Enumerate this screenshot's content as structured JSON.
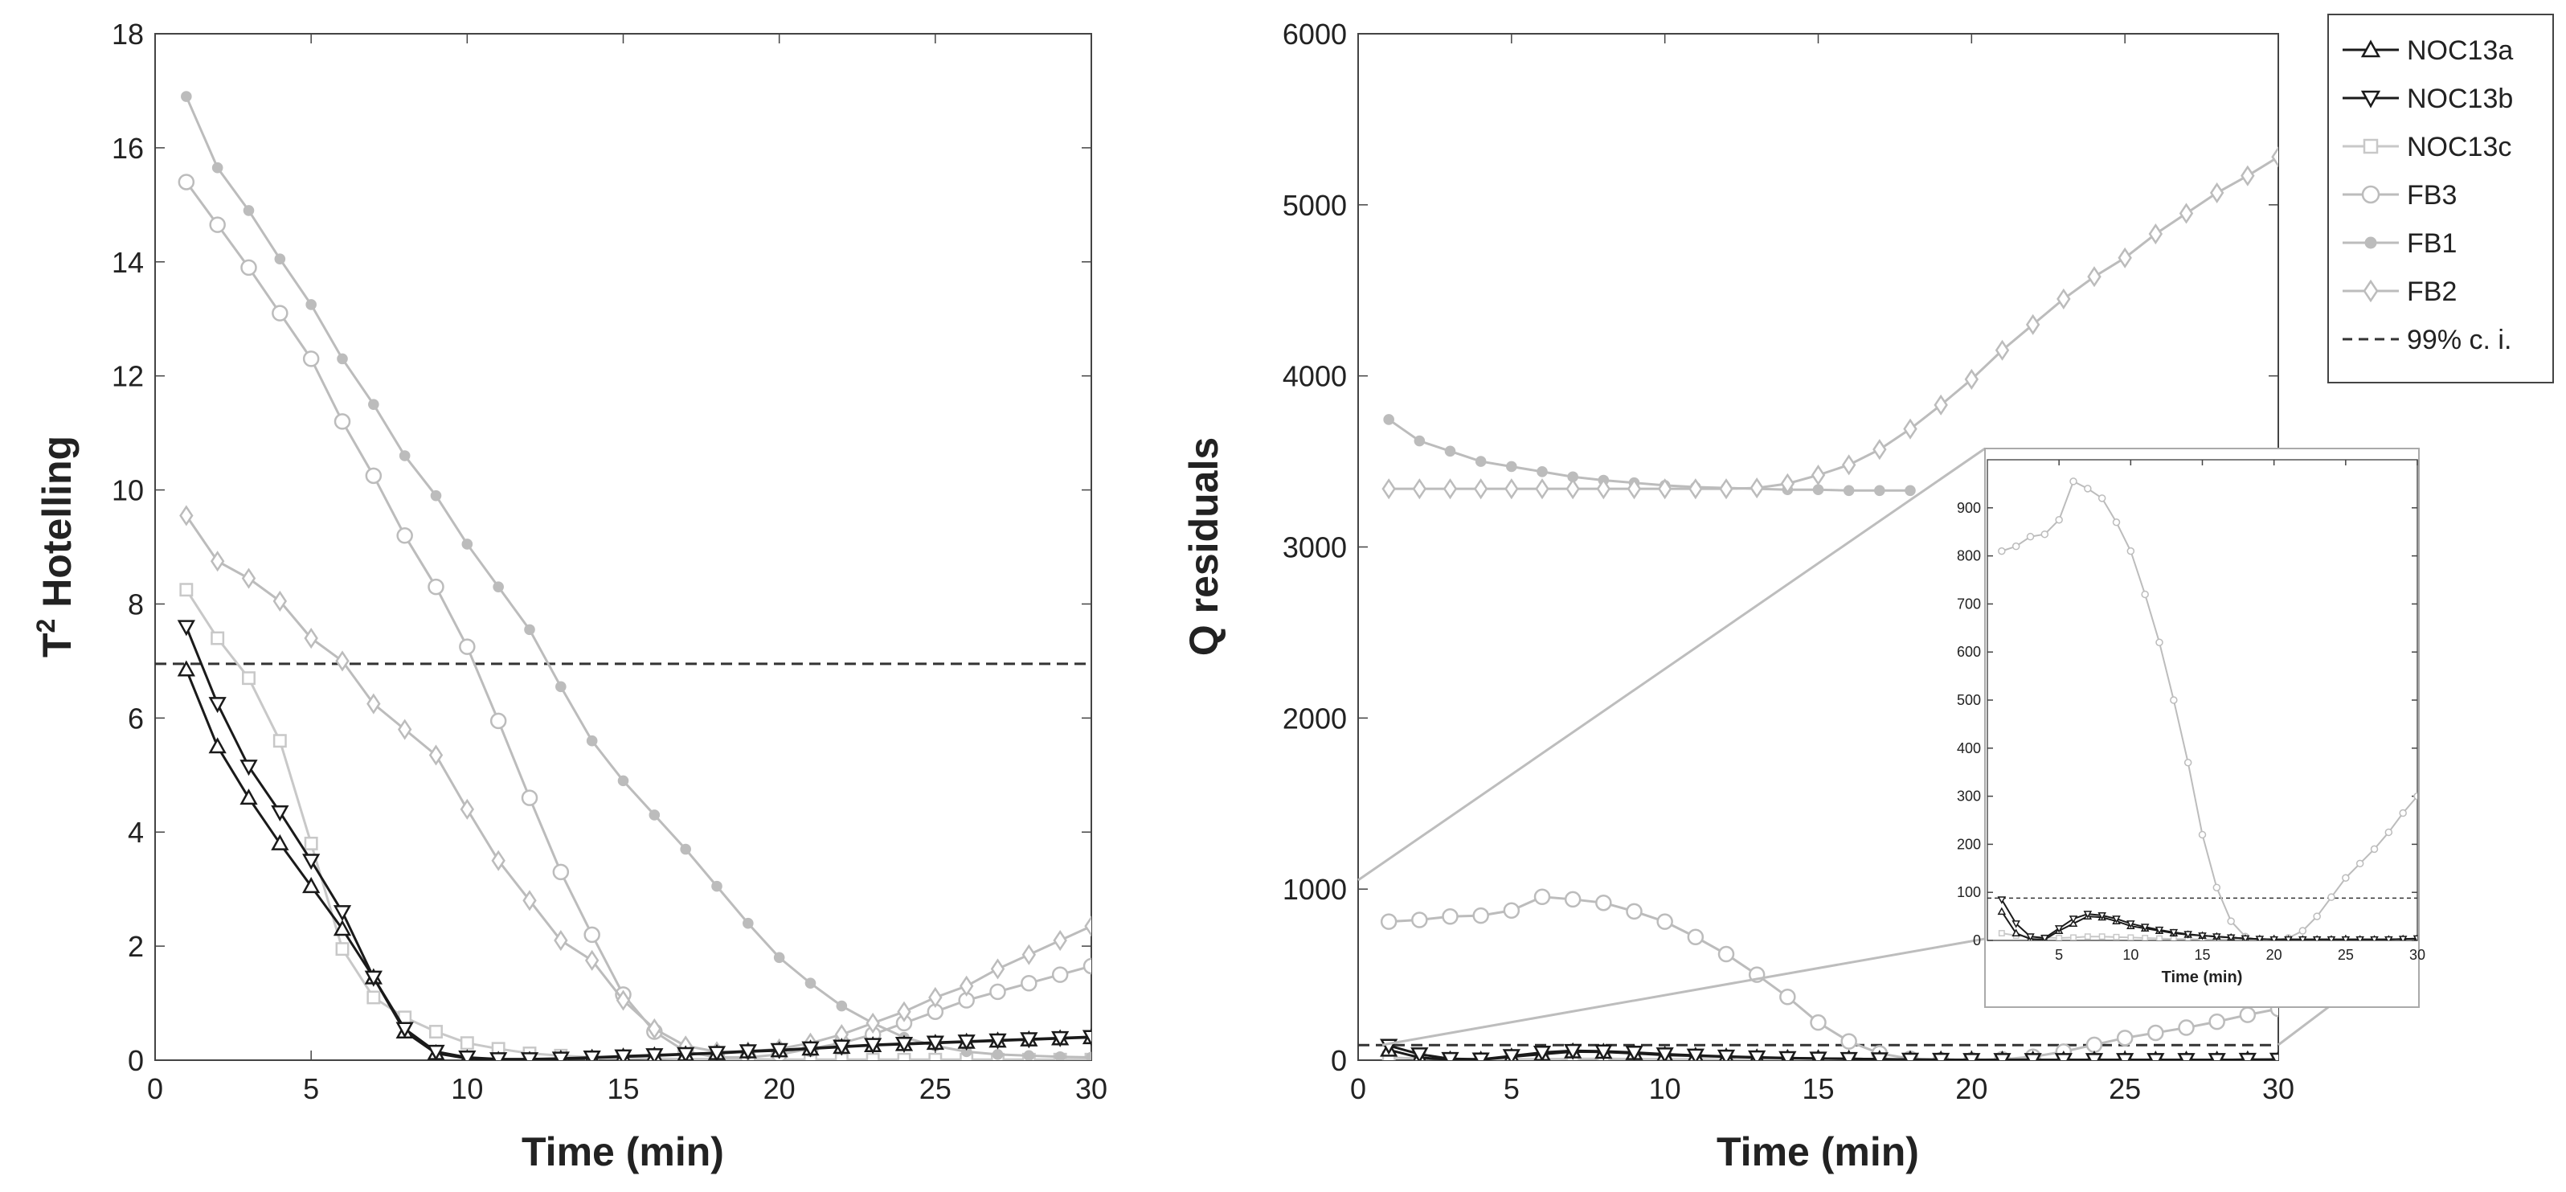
{
  "chart_data": [
    {
      "type": "line",
      "xlabel": "Time (min)",
      "ylabel": "T",
      "ylabel_sup": "2",
      "ylabel_rest": " Hotelling",
      "xlim": [
        0,
        30
      ],
      "ylim": [
        0,
        18
      ],
      "xticks": [
        "0",
        "5",
        "10",
        "15",
        "20",
        "25",
        "30"
      ],
      "yticks": [
        "0",
        "2",
        "4",
        "6",
        "8",
        "10",
        "12",
        "14",
        "16",
        "18"
      ],
      "threshold": 6.95,
      "series": [
        {
          "name": "NOC13a",
          "marker": "triangle-up",
          "color": "#1a1a1a",
          "x": [
            1,
            2,
            3,
            4,
            5,
            6,
            7,
            8,
            9,
            10,
            11,
            12,
            13,
            14,
            15,
            16,
            17,
            18,
            19,
            20,
            21,
            22,
            23,
            24,
            25,
            26,
            27,
            28,
            29,
            30
          ],
          "y": [
            6.85,
            5.5,
            4.6,
            3.8,
            3.05,
            2.3,
            1.45,
            0.5,
            0.12,
            0.03,
            0.0,
            0.0,
            0.02,
            0.04,
            0.06,
            0.08,
            0.1,
            0.12,
            0.15,
            0.17,
            0.2,
            0.23,
            0.26,
            0.28,
            0.3,
            0.32,
            0.34,
            0.36,
            0.38,
            0.4
          ]
        },
        {
          "name": "NOC13b",
          "marker": "triangle-down",
          "color": "#1a1a1a",
          "x": [
            1,
            2,
            3,
            4,
            5,
            6,
            7,
            8,
            9,
            10,
            11,
            12,
            13,
            14,
            15,
            16,
            17,
            18,
            19,
            20,
            21,
            22,
            23,
            24,
            25,
            26,
            27,
            28,
            29,
            30
          ],
          "y": [
            7.6,
            6.25,
            5.15,
            4.35,
            3.5,
            2.6,
            1.45,
            0.55,
            0.15,
            0.05,
            0.02,
            0.02,
            0.03,
            0.05,
            0.07,
            0.09,
            0.11,
            0.13,
            0.16,
            0.18,
            0.21,
            0.24,
            0.27,
            0.29,
            0.31,
            0.33,
            0.35,
            0.37,
            0.39,
            0.41
          ]
        },
        {
          "name": "NOC13c",
          "marker": "square",
          "color": "#c8c8c8",
          "x": [
            1,
            2,
            3,
            4,
            5,
            6,
            7,
            8,
            9,
            10,
            11,
            12,
            13,
            14,
            15,
            16,
            17,
            18,
            19,
            20,
            21,
            22,
            23,
            24,
            25,
            26,
            27,
            28,
            29,
            30
          ],
          "y": [
            8.25,
            7.4,
            6.7,
            5.6,
            3.8,
            1.95,
            1.1,
            0.75,
            0.5,
            0.3,
            0.2,
            0.12,
            0.08,
            0.05,
            0.04,
            0.03,
            0.02,
            0.02,
            0.02,
            0.01,
            0.01,
            0.01,
            0.01,
            0.01,
            0.01,
            0.01,
            0.01,
            0.01,
            0.01,
            0.01
          ]
        },
        {
          "name": "FB3",
          "marker": "circle",
          "color": "#bcbcbc",
          "x": [
            1,
            2,
            3,
            4,
            5,
            6,
            7,
            8,
            9,
            10,
            11,
            12,
            13,
            14,
            15,
            16,
            17,
            18,
            19,
            20,
            21,
            22,
            23,
            24,
            25,
            26,
            27,
            28,
            29,
            30
          ],
          "y": [
            15.4,
            14.65,
            13.9,
            13.1,
            12.3,
            11.2,
            10.25,
            9.2,
            8.3,
            7.25,
            5.95,
            4.6,
            3.3,
            2.2,
            1.15,
            0.5,
            0.15,
            0.05,
            0.05,
            0.1,
            0.2,
            0.3,
            0.45,
            0.65,
            0.85,
            1.05,
            1.2,
            1.35,
            1.5,
            1.65
          ]
        },
        {
          "name": "FB1",
          "marker": "asterisk",
          "color": "#bcbcbc",
          "x": [
            1,
            2,
            3,
            4,
            5,
            6,
            7,
            8,
            9,
            10,
            11,
            12,
            13,
            14,
            15,
            16,
            17,
            18,
            19,
            20,
            21,
            22,
            23,
            24,
            25,
            26,
            27,
            28,
            29,
            30
          ],
          "y": [
            16.9,
            15.65,
            14.9,
            14.05,
            13.25,
            12.3,
            11.5,
            10.6,
            9.9,
            9.05,
            8.3,
            7.55,
            6.55,
            5.6,
            4.9,
            4.3,
            3.7,
            3.05,
            2.4,
            1.8,
            1.35,
            0.95,
            0.65,
            0.4,
            0.25,
            0.15,
            0.1,
            0.08,
            0.06,
            0.05
          ]
        },
        {
          "name": "FB2",
          "marker": "diamond",
          "color": "#bcbcbc",
          "x": [
            1,
            2,
            3,
            4,
            5,
            6,
            7,
            8,
            9,
            10,
            11,
            12,
            13,
            14,
            15,
            16,
            17,
            18,
            19,
            20,
            21,
            22,
            23,
            24,
            25,
            26,
            27,
            28,
            29,
            30
          ],
          "y": [
            9.55,
            8.75,
            8.45,
            8.05,
            7.4,
            7.0,
            6.25,
            5.8,
            5.35,
            4.4,
            3.5,
            2.8,
            2.1,
            1.75,
            1.05,
            0.55,
            0.25,
            0.15,
            0.15,
            0.2,
            0.3,
            0.45,
            0.65,
            0.85,
            1.1,
            1.3,
            1.6,
            1.85,
            2.1,
            2.35
          ]
        }
      ]
    },
    {
      "type": "line",
      "xlabel": "Time (min)",
      "ylabel": "Q residuals",
      "xlim": [
        0,
        30
      ],
      "ylim": [
        0,
        6000
      ],
      "xticks": [
        "0",
        "5",
        "10",
        "15",
        "20",
        "25",
        "30"
      ],
      "yticks": [
        "0",
        "1000",
        "2000",
        "3000",
        "4000",
        "5000",
        "6000"
      ],
      "threshold": 88,
      "series": [
        {
          "name": "NOC13a",
          "marker": "triangle-up",
          "color": "#1a1a1a",
          "x": [
            1,
            2,
            3,
            4,
            5,
            6,
            7,
            8,
            9,
            10,
            11,
            12,
            13,
            14,
            15,
            16,
            17,
            18,
            19,
            20,
            21,
            22,
            23,
            24,
            25,
            26,
            27,
            28,
            29,
            30
          ],
          "y": [
            60,
            15,
            3,
            2,
            20,
            35,
            50,
            48,
            40,
            30,
            25,
            20,
            15,
            12,
            10,
            8,
            6,
            4,
            3,
            2,
            2,
            2,
            2,
            2,
            2,
            2,
            2,
            2,
            3,
            3
          ]
        },
        {
          "name": "NOC13b",
          "marker": "triangle-down",
          "color": "#1a1a1a",
          "x": [
            1,
            2,
            3,
            4,
            5,
            6,
            7,
            8,
            9,
            10,
            11,
            12,
            13,
            14,
            15,
            16,
            17,
            18,
            19,
            20,
            21,
            22,
            23,
            24,
            25,
            26,
            27,
            28,
            29,
            30
          ],
          "y": [
            85,
            35,
            8,
            5,
            25,
            45,
            55,
            52,
            45,
            35,
            28,
            22,
            17,
            13,
            10,
            8,
            6,
            4,
            3,
            2,
            2,
            2,
            2,
            2,
            2,
            2,
            2,
            2,
            3,
            4
          ]
        },
        {
          "name": "NOC13c",
          "marker": "square",
          "color": "#c8c8c8",
          "x": [
            1,
            2,
            3,
            4,
            5,
            6,
            7,
            8,
            9,
            10,
            11,
            12,
            13,
            14,
            15,
            16,
            17,
            18,
            19,
            20,
            21,
            22,
            23,
            24,
            25,
            26,
            27,
            28,
            29,
            30
          ],
          "y": [
            15,
            10,
            8,
            6,
            5,
            6,
            8,
            8,
            7,
            6,
            5,
            4,
            3,
            3,
            2,
            2,
            2,
            2,
            2,
            2,
            2,
            2,
            2,
            2,
            2,
            2,
            2,
            2,
            2,
            2
          ]
        },
        {
          "name": "FB3",
          "marker": "circle",
          "color": "#bcbcbc",
          "x": [
            1,
            2,
            3,
            4,
            5,
            6,
            7,
            8,
            9,
            10,
            11,
            12,
            13,
            14,
            15,
            16,
            17,
            18,
            19,
            20,
            21,
            22,
            23,
            24,
            25,
            26,
            27,
            28,
            29,
            30
          ],
          "y": [
            810,
            820,
            840,
            845,
            875,
            955,
            940,
            920,
            870,
            810,
            720,
            620,
            500,
            370,
            220,
            110,
            40,
            8,
            0,
            0,
            5,
            20,
            50,
            90,
            130,
            160,
            190,
            225,
            265,
            300
          ]
        },
        {
          "name": "FB1",
          "marker": "asterisk",
          "color": "#bcbcbc",
          "x": [
            1,
            2,
            3,
            4,
            5,
            6,
            7,
            8,
            9,
            10,
            11,
            12,
            13,
            14,
            15,
            16,
            17,
            18
          ],
          "y": [
            3745,
            3620,
            3560,
            3500,
            3470,
            3440,
            3410,
            3390,
            3375,
            3360,
            3350,
            3345,
            3340,
            3335,
            3335,
            3330,
            3330,
            3330
          ]
        },
        {
          "name": "FB2",
          "marker": "diamond",
          "color": "#bcbcbc",
          "x": [
            1,
            2,
            3,
            4,
            5,
            6,
            7,
            8,
            9,
            10,
            11,
            12,
            13,
            14,
            15,
            16,
            17,
            18,
            19,
            20,
            21,
            22,
            23,
            24,
            25,
            26,
            27,
            28,
            29,
            30
          ],
          "y": [
            3340,
            3340,
            3340,
            3340,
            3340,
            3340,
            3340,
            3340,
            3340,
            3340,
            3340,
            3340,
            3345,
            3370,
            3420,
            3480,
            3570,
            3690,
            3830,
            3980,
            4150,
            4300,
            4450,
            4580,
            4690,
            4830,
            4950,
            5070,
            5170,
            5280
          ]
        }
      ],
      "inset": {
        "xlabel": "Time (min)",
        "xlim": [
          0,
          30
        ],
        "ylim": [
          0,
          1000
        ],
        "xticks": [
          "5",
          "10",
          "15",
          "20",
          "25",
          "30"
        ],
        "yticks": [
          "0",
          "100",
          "200",
          "300",
          "400",
          "500",
          "600",
          "700",
          "800",
          "900"
        ]
      }
    }
  ],
  "legend": {
    "entries": [
      {
        "label": "NOC13a",
        "marker": "triangle-up",
        "color": "#1a1a1a"
      },
      {
        "label": "NOC13b",
        "marker": "triangle-down",
        "color": "#1a1a1a"
      },
      {
        "label": "NOC13c",
        "marker": "square",
        "color": "#c8c8c8"
      },
      {
        "label": "FB3",
        "marker": "circle",
        "color": "#bcbcbc"
      },
      {
        "label": "FB1",
        "marker": "asterisk",
        "color": "#bcbcbc"
      },
      {
        "label": "FB2",
        "marker": "diamond",
        "color": "#bcbcbc"
      },
      {
        "label": "99% c. i.",
        "marker": "dashed-line",
        "color": "#333333"
      }
    ]
  }
}
